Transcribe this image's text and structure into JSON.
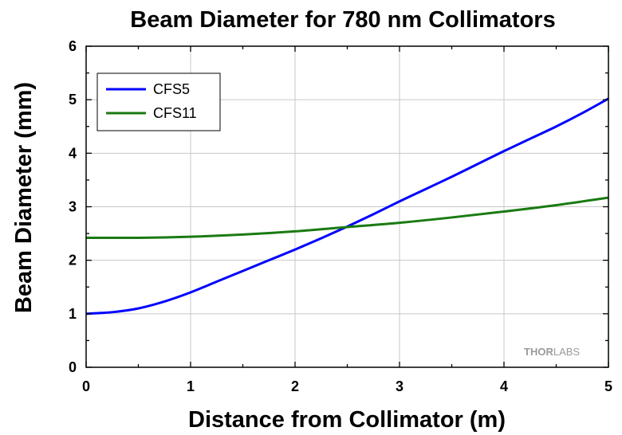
{
  "chart_data": {
    "type": "line",
    "title": "Beam Diameter for 780 nm Collimators",
    "xlabel": "Distance from Collimator (m)",
    "ylabel": "Beam Diameter (mm)",
    "xlim": [
      0,
      5
    ],
    "ylim": [
      0,
      6
    ],
    "xticks": [
      "0",
      "1",
      "2",
      "3",
      "4",
      "5"
    ],
    "yticks": [
      "0",
      "1",
      "2",
      "3",
      "4",
      "5",
      "6"
    ],
    "grid": true,
    "legend_position": "top-left",
    "series": [
      {
        "name": "CFS5",
        "color": "#0000ff",
        "x": [
          0,
          0.25,
          0.5,
          0.75,
          1.0,
          1.25,
          1.5,
          1.75,
          2.0,
          2.25,
          2.5,
          2.75,
          3.0,
          3.25,
          3.5,
          3.75,
          4.0,
          4.25,
          4.5,
          4.75,
          5.0
        ],
        "y": [
          1.0,
          1.03,
          1.1,
          1.23,
          1.4,
          1.6,
          1.8,
          2.0,
          2.2,
          2.41,
          2.63,
          2.86,
          3.1,
          3.33,
          3.56,
          3.8,
          4.04,
          4.27,
          4.5,
          4.75,
          5.02
        ]
      },
      {
        "name": "CFS11",
        "color": "#1a7a12",
        "x": [
          0,
          0.5,
          1.0,
          1.5,
          2.0,
          2.5,
          3.0,
          3.5,
          4.0,
          4.5,
          5.0
        ],
        "y": [
          2.42,
          2.42,
          2.44,
          2.48,
          2.54,
          2.62,
          2.7,
          2.8,
          2.91,
          3.03,
          3.17
        ]
      }
    ]
  },
  "watermark": {
    "part1": "THOR",
    "part2": "LABS"
  }
}
